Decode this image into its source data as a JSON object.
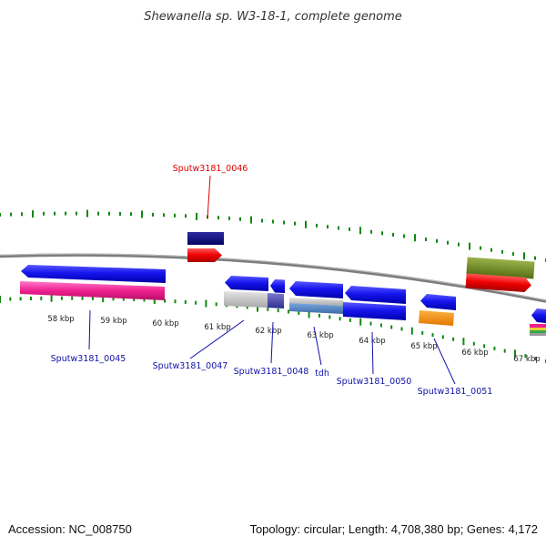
{
  "title": "Shewanella sp. W3-18-1, complete genome",
  "footer": {
    "accession": "Accession: NC_008750",
    "summary": "Topology: circular; Length: 4,708,380 bp; Genes: 4,172"
  },
  "colors": {
    "backbone": "#7d7d7d",
    "tick": "#118811",
    "label_blue": "#1111aa",
    "label_red": "#dd0000"
  },
  "ticks": [
    "58 kbp",
    "59 kbp",
    "60 kbp",
    "61 kbp",
    "62 kbp",
    "63 kbp",
    "64 kbp",
    "65 kbp",
    "66 kbp",
    "67 kbp"
  ],
  "gene_labels": [
    {
      "text": "Sputw3181_0046",
      "color": "label_red"
    },
    {
      "text": "Sputw3181_0045",
      "color": "label_blue"
    },
    {
      "text": "Sputw3181_0047",
      "color": "label_blue"
    },
    {
      "text": "Sputw3181_0048",
      "color": "label_blue"
    },
    {
      "text": "tdh",
      "color": "label_blue"
    },
    {
      "text": "Sputw3181_0050",
      "color": "label_blue"
    },
    {
      "text": "Sputw3181_0051",
      "color": "label_blue"
    }
  ]
}
